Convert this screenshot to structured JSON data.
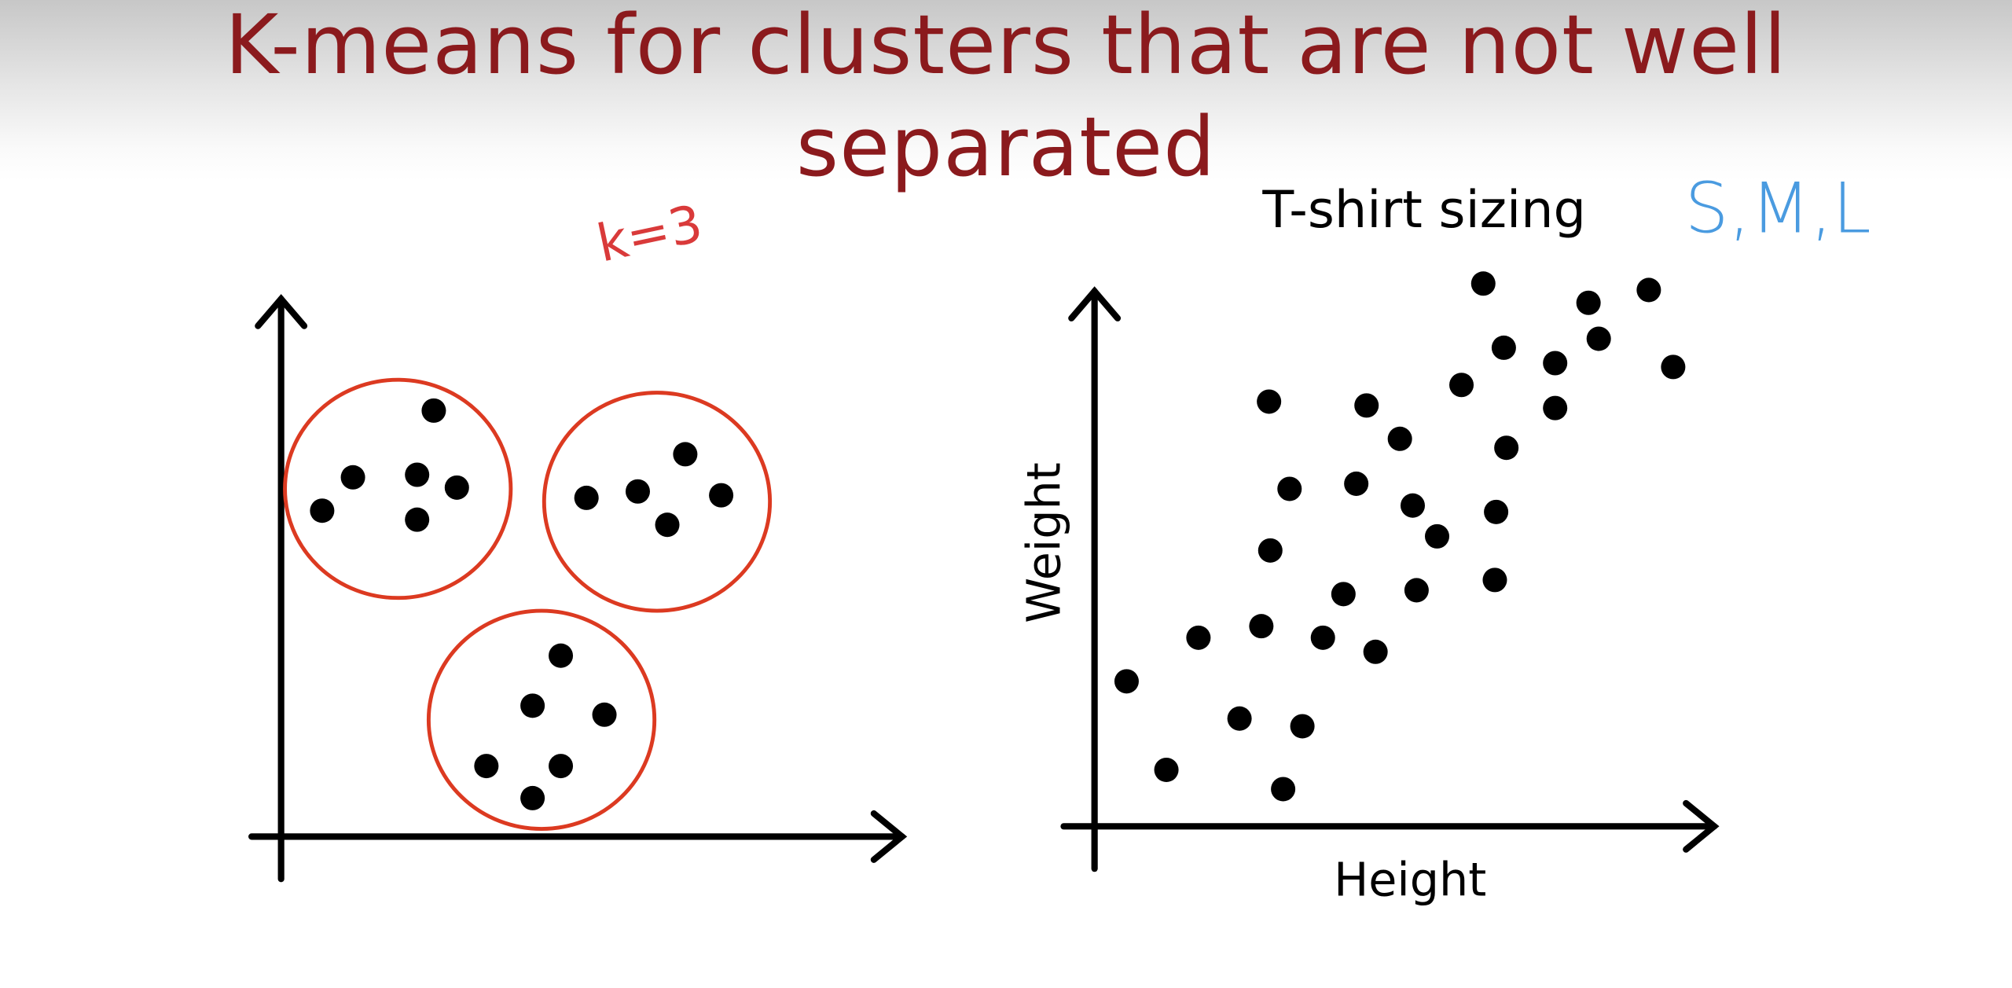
{
  "slide": {
    "title": "K-means for clusters that are not well separated"
  },
  "colors": {
    "title": "#8b1a1d",
    "cluster_circle": "#dc3a21",
    "k_annotation": "#d93a3a",
    "size_annotation": "#4a9be0",
    "points": "#000000"
  },
  "left_diagram": {
    "k_annotation": "k=3",
    "clusters": [
      {
        "name": "cluster-top-left",
        "points": [
          [
            338,
            320
          ],
          [
            275,
            372
          ],
          [
            325,
            370
          ],
          [
            356,
            380
          ],
          [
            251,
            398
          ],
          [
            325,
            405
          ]
        ]
      },
      {
        "name": "cluster-top-right",
        "points": [
          [
            534,
            354
          ],
          [
            457,
            388
          ],
          [
            497,
            383
          ],
          [
            562,
            386
          ],
          [
            520,
            409
          ]
        ]
      },
      {
        "name": "cluster-bottom",
        "points": [
          [
            437,
            511
          ],
          [
            415,
            550
          ],
          [
            471,
            557
          ],
          [
            379,
            597
          ],
          [
            437,
            597
          ],
          [
            415,
            622
          ]
        ]
      }
    ]
  },
  "right_diagram": {
    "title": "T-shirt sizing",
    "size_annotation": "S,M,L",
    "x_label": "Height",
    "y_label": "Weight",
    "points": [
      [
        1156,
        221
      ],
      [
        1238,
        236
      ],
      [
        1285,
        226
      ],
      [
        1172,
        271
      ],
      [
        1246,
        264
      ],
      [
        1212,
        283
      ],
      [
        1304,
        286
      ],
      [
        1139,
        300
      ],
      [
        989,
        313
      ],
      [
        1065,
        316
      ],
      [
        1212,
        318
      ],
      [
        1091,
        342
      ],
      [
        1174,
        349
      ],
      [
        1005,
        381
      ],
      [
        1057,
        377
      ],
      [
        1101,
        394
      ],
      [
        1166,
        399
      ],
      [
        1120,
        418
      ],
      [
        990,
        429
      ],
      [
        1047,
        463
      ],
      [
        1104,
        460
      ],
      [
        1165,
        452
      ],
      [
        934,
        497
      ],
      [
        983,
        488
      ],
      [
        1031,
        497
      ],
      [
        1072,
        508
      ],
      [
        878,
        531
      ],
      [
        966,
        560
      ],
      [
        1015,
        566
      ],
      [
        909,
        600
      ],
      [
        1000,
        615
      ]
    ]
  }
}
